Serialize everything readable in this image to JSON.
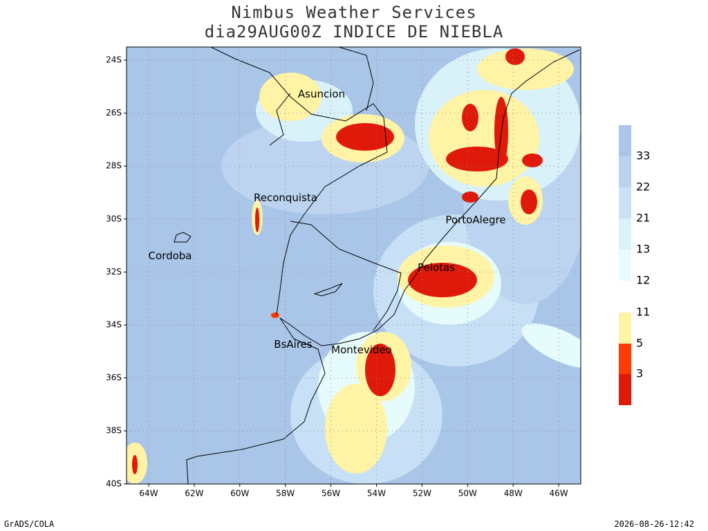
{
  "header": {
    "title": "Nimbus Weather Services",
    "subtitle": "dia29AUG00Z INDICE DE NIEBLA"
  },
  "map": {
    "lat_ticks": [
      "24S",
      "26S",
      "28S",
      "30S",
      "32S",
      "34S",
      "36S",
      "38S",
      "40S"
    ],
    "lon_ticks": [
      "64W",
      "62W",
      "60W",
      "58W",
      "56W",
      "54W",
      "52W",
      "50W",
      "48W",
      "46W"
    ],
    "cities": [
      "Asuncion",
      "Reconquista",
      "Cordoba",
      "PortoAlegre",
      "Pelotas",
      "BsAires",
      "Montevideo"
    ]
  },
  "legend": {
    "levels": [
      33,
      22,
      21,
      13,
      12,
      11,
      5,
      3
    ]
  },
  "footer": {
    "left": "GrADS/COLA",
    "right": "2026-08-26-12:42"
  }
}
